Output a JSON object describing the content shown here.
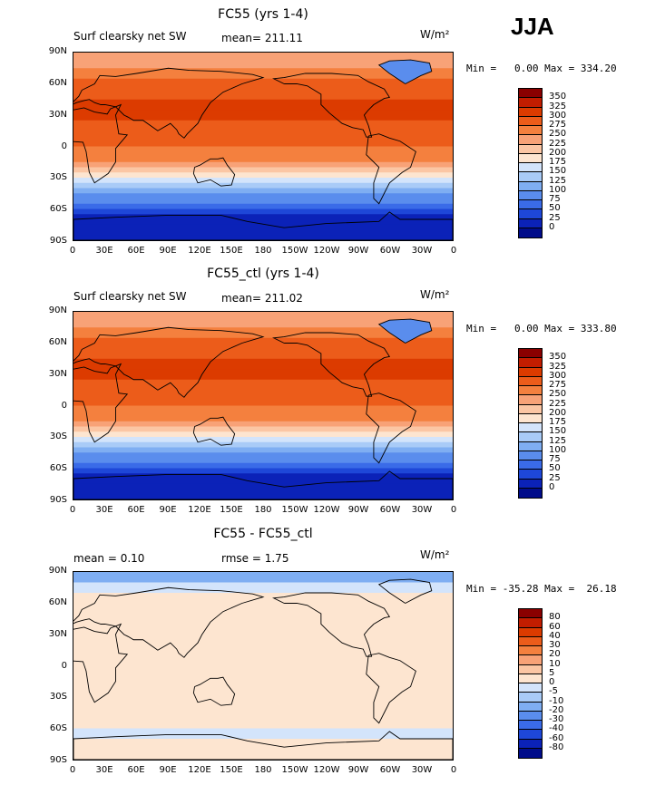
{
  "season": "JJA",
  "panels": [
    {
      "title": "FC55 (yrs 1-4)",
      "left_label": "Surf clearsky net SW",
      "center_label": "mean= 211.11",
      "units": "W/m²",
      "minmax": "Min =   0.00 Max = 334.20",
      "cbar_labels": [
        "350",
        "325",
        "300",
        "275",
        "250",
        "225",
        "200",
        "175",
        "150",
        "125",
        "100",
        "75",
        "50",
        "25",
        "0"
      ],
      "colors": [
        "#8a0000",
        "#c21d00",
        "#dc3b00",
        "#ec5c1a",
        "#f4803e",
        "#f8a277",
        "#fbc6a4",
        "#fde5d0",
        "#d3e4fb",
        "#a9cbf7",
        "#7faef2",
        "#5a8ded",
        "#3a6be8",
        "#1e47d8",
        "#0b22b8",
        "#000c8a"
      ]
    },
    {
      "title": "FC55_ctl (yrs 1-4)",
      "left_label": "Surf clearsky net SW",
      "center_label": "mean= 211.02",
      "units": "W/m²",
      "minmax": "Min =   0.00 Max = 333.80",
      "cbar_labels": [
        "350",
        "325",
        "300",
        "275",
        "250",
        "225",
        "200",
        "175",
        "150",
        "125",
        "100",
        "75",
        "50",
        "25",
        "0"
      ],
      "colors": [
        "#8a0000",
        "#c21d00",
        "#dc3b00",
        "#ec5c1a",
        "#f4803e",
        "#f8a277",
        "#fbc6a4",
        "#fde5d0",
        "#d3e4fb",
        "#a9cbf7",
        "#7faef2",
        "#5a8ded",
        "#3a6be8",
        "#1e47d8",
        "#0b22b8",
        "#000c8a"
      ]
    },
    {
      "title": "FC55 - FC55_ctl",
      "left_label": "mean =    0.10",
      "center_label": "rmse =    1.75",
      "units": "W/m²",
      "minmax": "Min = -35.28 Max =  26.18",
      "cbar_labels": [
        "80",
        "60",
        "40",
        "30",
        "20",
        "10",
        "5",
        "0",
        "-5",
        "-10",
        "-20",
        "-30",
        "-40",
        "-60",
        "-80"
      ],
      "colors": [
        "#8a0000",
        "#c21d00",
        "#dc3b00",
        "#ec5c1a",
        "#f4803e",
        "#f8a277",
        "#fbc6a4",
        "#fde5d0",
        "#d3e4fb",
        "#a9cbf7",
        "#7faef2",
        "#5a8ded",
        "#3a6be8",
        "#1e47d8",
        "#0b22b8",
        "#000c8a"
      ]
    }
  ],
  "lat_labels": [
    "90N",
    "60N",
    "30N",
    "0",
    "30S",
    "60S",
    "90S"
  ],
  "lon_labels": [
    "0",
    "30E",
    "60E",
    "90E",
    "120E",
    "150E",
    "180",
    "150W",
    "120W",
    "90W",
    "60W",
    "30W",
    "0"
  ],
  "chart_data": [
    {
      "type": "heatmap",
      "title": "FC55 (yrs 1-4)",
      "field": "Surf clearsky net SW",
      "units": "W/m²",
      "mean": 211.11,
      "min": 0.0,
      "max": 334.2,
      "levels": [
        0,
        25,
        50,
        75,
        100,
        125,
        150,
        175,
        200,
        225,
        250,
        275,
        300,
        325,
        350
      ],
      "x_ticks": [
        "0",
        "30E",
        "60E",
        "90E",
        "120E",
        "150E",
        "180",
        "150W",
        "120W",
        "90W",
        "60W",
        "30W",
        "0"
      ],
      "y_ticks": [
        "90N",
        "60N",
        "30N",
        "0",
        "30S",
        "60S",
        "90S"
      ],
      "zonal_profile": {
        "lat": [
          75,
          60,
          45,
          30,
          15,
          0,
          -15,
          -30,
          -45,
          -60,
          -75
        ],
        "value": [
          240,
          290,
          300,
          300,
          285,
          275,
          245,
          185,
          110,
          40,
          0
        ]
      }
    },
    {
      "type": "heatmap",
      "title": "FC55_ctl (yrs 1-4)",
      "field": "Surf clearsky net SW",
      "units": "W/m²",
      "mean": 211.02,
      "min": 0.0,
      "max": 333.8,
      "levels": [
        0,
        25,
        50,
        75,
        100,
        125,
        150,
        175,
        200,
        225,
        250,
        275,
        300,
        325,
        350
      ],
      "x_ticks": [
        "0",
        "30E",
        "60E",
        "90E",
        "120E",
        "150E",
        "180",
        "150W",
        "120W",
        "90W",
        "60W",
        "30W",
        "0"
      ],
      "y_ticks": [
        "90N",
        "60N",
        "30N",
        "0",
        "30S",
        "60S",
        "90S"
      ],
      "zonal_profile": {
        "lat": [
          75,
          60,
          45,
          30,
          15,
          0,
          -15,
          -30,
          -45,
          -60,
          -75
        ],
        "value": [
          240,
          290,
          300,
          300,
          285,
          275,
          245,
          185,
          110,
          40,
          0
        ]
      }
    },
    {
      "type": "heatmap",
      "title": "FC55 - FC55_ctl",
      "units": "W/m²",
      "mean": 0.1,
      "rmse": 1.75,
      "min": -35.28,
      "max": 26.18,
      "levels": [
        -80,
        -60,
        -40,
        -30,
        -20,
        -10,
        -5,
        0,
        5,
        10,
        20,
        30,
        40,
        60,
        80
      ],
      "x_ticks": [
        "0",
        "30E",
        "60E",
        "90E",
        "120E",
        "150E",
        "180",
        "150W",
        "120W",
        "90W",
        "60W",
        "30W",
        "0"
      ],
      "y_ticks": [
        "90N",
        "60N",
        "30N",
        "0",
        "30S",
        "60S",
        "90S"
      ]
    }
  ]
}
